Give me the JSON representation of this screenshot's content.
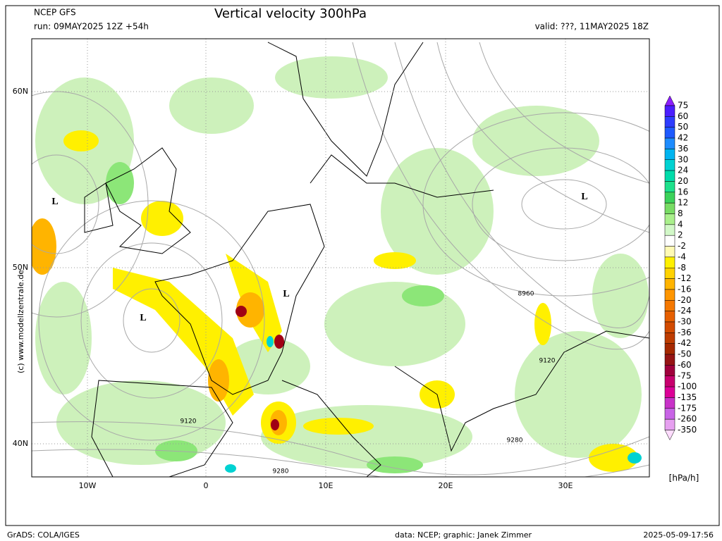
{
  "header": {
    "source": "NCEP GFS",
    "run": "run: 09MAY2025 12Z +54h",
    "title": "Vertical velocity 300hPa",
    "valid": "valid: ???, 11MAY2025 18Z"
  },
  "map": {
    "lat_labels": [
      "60N",
      "50N",
      "40N"
    ],
    "lon_labels": [
      "10W",
      "0",
      "10E",
      "20E",
      "30E"
    ],
    "pressure_labels": [
      "L",
      "L",
      "L",
      "L"
    ],
    "contour_labels": [
      8960,
      9120,
      9120,
      9280,
      9280
    ],
    "watermark": "(c) www.modellzentrale.de"
  },
  "colorbar": {
    "levels": [
      75,
      60,
      50,
      42,
      36,
      30,
      24,
      20,
      16,
      12,
      8,
      4,
      2,
      -2,
      -4,
      -8,
      -12,
      -16,
      -20,
      -24,
      -30,
      -36,
      -42,
      -50,
      -60,
      -75,
      -100,
      -135,
      -175,
      -260,
      -350
    ],
    "colors": [
      "#8c1eff",
      "#4b1eff",
      "#2d3cff",
      "#1e5aff",
      "#1e8cff",
      "#00b4f0",
      "#00d2d2",
      "#00dcaa",
      "#1ee18c",
      "#3cd25a",
      "#78dc64",
      "#aaf08c",
      "#d2f8c8",
      "#ffffff",
      "#fffab4",
      "#fff000",
      "#ffd200",
      "#ffb400",
      "#ff9600",
      "#f57800",
      "#e65f00",
      "#d24b00",
      "#be3c00",
      "#a52800",
      "#961414",
      "#a0003c",
      "#c8006e",
      "#dc0096",
      "#c832c8",
      "#c864e6",
      "#e6a0f0",
      "#ffdcff"
    ],
    "unit": "[hPa/h]"
  },
  "footer": {
    "left": "GrADS: COLA/IGES",
    "credit": "data: NCEP; graphic: Janek Zimmer",
    "timestamp": "2025-05-09-17:56"
  }
}
